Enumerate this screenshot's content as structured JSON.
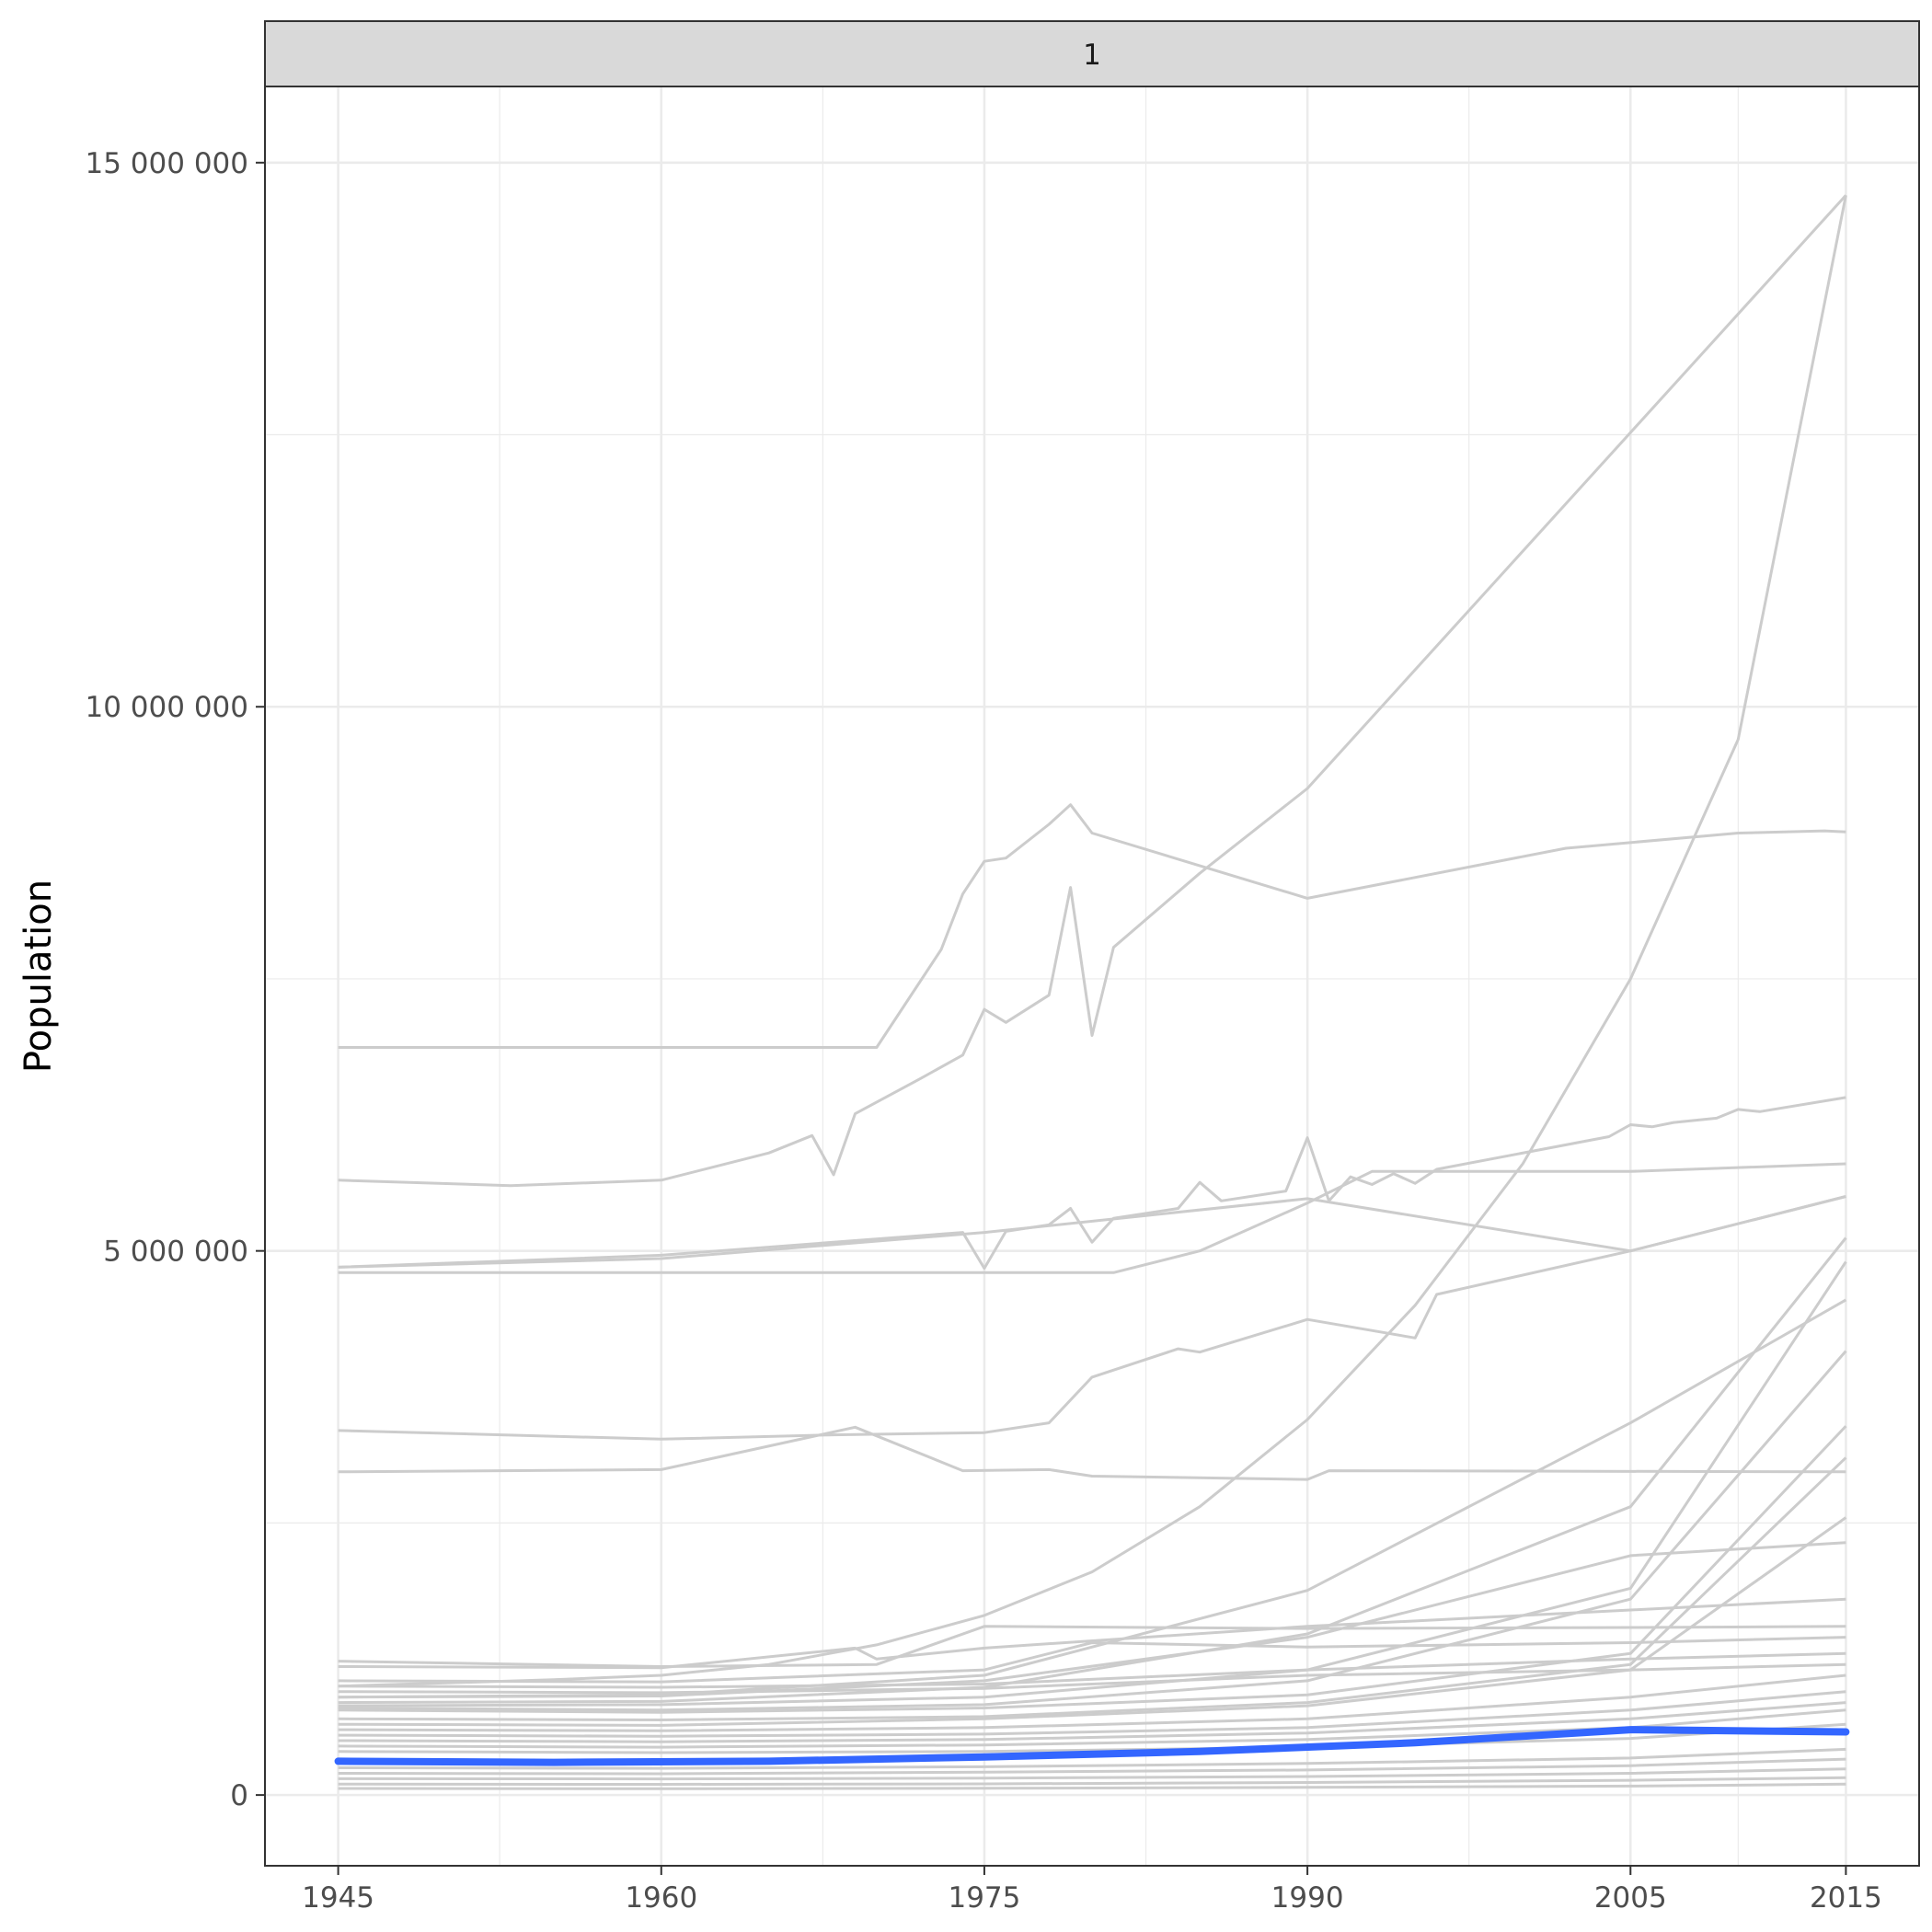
{
  "chart_data": {
    "type": "line",
    "facet_label": "1",
    "xlabel": "",
    "ylabel": "Population",
    "x_ticks": [
      1945,
      1960,
      1975,
      1990,
      2005,
      2015
    ],
    "x_tick_labels": [
      "1945",
      "1960",
      "1975",
      "1990",
      "2005",
      "2015"
    ],
    "y_ticks": [
      0,
      5000000,
      10000000,
      15000000
    ],
    "y_tick_labels": [
      "0",
      "5 000 000",
      "10 000 000",
      "15 000 000"
    ],
    "xlim": [
      1941.6,
      2018.4
    ],
    "ylim": [
      -650000,
      15700000
    ],
    "grid": true,
    "legend": "none",
    "colors": {
      "background_series": "#cccccc",
      "highlight_series": "#3366ff",
      "grid": "#ebebeb",
      "strip": "#d9d9d9"
    },
    "highlight": {
      "x": [
        1945,
        1955,
        1965,
        1975,
        1985,
        1995,
        2005,
        2015
      ],
      "y": [
        310000,
        300000,
        310000,
        350000,
        400000,
        480000,
        600000,
        580000
      ]
    },
    "background_series": [
      {
        "x": [
          1945,
          1950,
          1955,
          1960,
          1965,
          1970,
          1975,
          1980,
          1985,
          1990,
          1995,
          2000,
          2005,
          2010,
          2015
        ],
        "y": [
          1000000,
          1030000,
          1060000,
          1100000,
          1200000,
          1380000,
          1650000,
          2050000,
          2650000,
          3450000,
          4500000,
          5800000,
          7500000,
          9700000,
          14700000
        ]
      },
      {
        "x": [
          1945,
          1970,
          1973,
          1974,
          1975,
          1976,
          1978,
          1979,
          1980,
          1990,
          2002,
          2010,
          2014,
          2015
        ],
        "y": [
          6870000,
          6870000,
          7770000,
          8280000,
          8580000,
          8610000,
          8920000,
          9100000,
          8840000,
          8240000,
          8700000,
          8840000,
          8860000,
          8850000
        ]
      },
      {
        "x": [
          1945,
          1953,
          1960,
          1965,
          1967,
          1968,
          1969,
          1972,
          1974,
          1975,
          1976,
          1978,
          1979,
          1980,
          1981,
          1985,
          1990,
          2015
        ],
        "y": [
          5650000,
          5600000,
          5650000,
          5900000,
          6060000,
          5700000,
          6260000,
          6580000,
          6800000,
          7220000,
          7100000,
          7350000,
          8340000,
          6980000,
          7790000,
          8470000,
          9250000,
          14700000
        ]
      },
      {
        "x": [
          1945,
          1960,
          1974,
          1975,
          1976,
          1978,
          1979,
          1980,
          1981,
          1984,
          1985,
          1986,
          1989,
          1990,
          1991,
          1992,
          1993,
          1994,
          1995,
          1996,
          2004,
          2005,
          2006,
          2007,
          2009,
          2010,
          2011,
          2015
        ],
        "y": [
          4850000,
          4960000,
          5170000,
          4840000,
          5180000,
          5240000,
          5390000,
          5080000,
          5300000,
          5390000,
          5630000,
          5460000,
          5550000,
          6040000,
          5460000,
          5680000,
          5610000,
          5710000,
          5620000,
          5750000,
          6050000,
          6160000,
          6140000,
          6180000,
          6220000,
          6300000,
          6280000,
          6410000
        ]
      },
      {
        "x": [
          1945,
          1981,
          1985,
          1990,
          1993,
          2005,
          2015
        ],
        "y": [
          4800000,
          4800000,
          5000000,
          5440000,
          5730000,
          5730000,
          5800000
        ]
      },
      {
        "x": [
          1945,
          1960,
          1975,
          1990,
          2005,
          2015
        ],
        "y": [
          4850000,
          4930000,
          5170000,
          5480000,
          5000000,
          5500000
        ]
      },
      {
        "x": [
          1945,
          1960,
          1968,
          1975,
          1978,
          1980,
          1984,
          1985,
          1990,
          1995,
          1996,
          2005,
          2015
        ],
        "y": [
          3350000,
          3270000,
          3310000,
          3330000,
          3420000,
          3840000,
          4100000,
          4070000,
          4370000,
          4200000,
          4600000,
          5000000,
          5500000
        ]
      },
      {
        "x": [
          1945,
          1960,
          1969,
          1974,
          1978,
          1980,
          1990,
          1991,
          2015
        ],
        "y": [
          2970000,
          2990000,
          3380000,
          2980000,
          2990000,
          2930000,
          2900000,
          2980000,
          2970000
        ]
      },
      {
        "x": [
          1945,
          1960,
          1975,
          1990,
          2005,
          2015
        ],
        "y": [
          850000,
          860000,
          990000,
          1480000,
          2650000,
          5120000
        ]
      },
      {
        "x": [
          1945,
          1960,
          1975,
          1990,
          2005,
          2015
        ],
        "y": [
          820000,
          830000,
          900000,
          1150000,
          1900000,
          4900000
        ]
      },
      {
        "x": [
          1945,
          1960,
          1975,
          1990,
          2005,
          2015
        ],
        "y": [
          900000,
          920000,
          1100000,
          1880000,
          3420000,
          4550000
        ]
      },
      {
        "x": [
          1945,
          1960,
          1975,
          1990,
          2005,
          2015
        ],
        "y": [
          800000,
          780000,
          830000,
          1050000,
          1800000,
          4080000
        ]
      },
      {
        "x": [
          1945,
          1960,
          1975,
          1990,
          2005,
          2015
        ],
        "y": [
          780000,
          760000,
          800000,
          920000,
          1300000,
          3390000
        ]
      },
      {
        "x": [
          1945,
          1960,
          1975,
          1990,
          2005,
          2015
        ],
        "y": [
          700000,
          690000,
          720000,
          850000,
          1200000,
          3100000
        ]
      },
      {
        "x": [
          1945,
          1960,
          1975,
          1990,
          2005,
          2015
        ],
        "y": [
          650000,
          640000,
          700000,
          820000,
          1150000,
          2550000
        ]
      },
      {
        "x": [
          1945,
          1960,
          1975,
          1990,
          2005,
          2015
        ],
        "y": [
          900000,
          910000,
          1050000,
          1450000,
          2200000,
          2320000
        ]
      },
      {
        "x": [
          1945,
          1960,
          1970,
          1975,
          1990,
          2005,
          2015
        ],
        "y": [
          1230000,
          1180000,
          1200000,
          1550000,
          1530000,
          1540000,
          1550000
        ]
      },
      {
        "x": [
          1945,
          1960,
          1969,
          1970,
          1975,
          1990,
          2005,
          2015
        ],
        "y": [
          1180000,
          1170000,
          1350000,
          1250000,
          1350000,
          1550000,
          1700000,
          1800000
        ]
      },
      {
        "x": [
          1945,
          1960,
          1975,
          1980,
          1990,
          2005,
          2015
        ],
        "y": [
          1050000,
          1040000,
          1150000,
          1400000,
          1360000,
          1400000,
          1450000
        ]
      },
      {
        "x": [
          1945,
          1960,
          1975,
          1990,
          2005,
          2015
        ],
        "y": [
          1000000,
          990000,
          1020000,
          1150000,
          1250000,
          1300000
        ]
      },
      {
        "x": [
          1945,
          1960,
          1975,
          1990,
          2005,
          2015
        ],
        "y": [
          950000,
          940000,
          980000,
          1100000,
          1150000,
          1200000
        ]
      },
      {
        "x": [
          1945,
          1960,
          1975,
          1990,
          2005,
          2015
        ],
        "y": [
          600000,
          590000,
          620000,
          700000,
          900000,
          1100000
        ]
      },
      {
        "x": [
          1945,
          1960,
          1975,
          1990,
          2005,
          2015
        ],
        "y": [
          550000,
          540000,
          560000,
          620000,
          780000,
          950000
        ]
      },
      {
        "x": [
          1945,
          1960,
          1975,
          1990,
          2005,
          2015
        ],
        "y": [
          500000,
          490000,
          510000,
          570000,
          700000,
          850000
        ]
      },
      {
        "x": [
          1945,
          1960,
          1975,
          1990,
          2005,
          2015
        ],
        "y": [
          450000,
          440000,
          460000,
          510000,
          620000,
          780000
        ]
      },
      {
        "x": [
          1945,
          1960,
          1975,
          1990,
          2005,
          2015
        ],
        "y": [
          400000,
          390000,
          400000,
          440000,
          520000,
          650000
        ]
      },
      {
        "x": [
          1945,
          1960,
          1975,
          1990,
          2005,
          2015
        ],
        "y": [
          250000,
          245000,
          260000,
          290000,
          340000,
          420000
        ]
      },
      {
        "x": [
          1945,
          1960,
          1975,
          1990,
          2005,
          2015
        ],
        "y": [
          200000,
          195000,
          210000,
          230000,
          270000,
          330000
        ]
      },
      {
        "x": [
          1945,
          1960,
          1975,
          1990,
          2005,
          2015
        ],
        "y": [
          150000,
          148000,
          155000,
          170000,
          200000,
          240000
        ]
      },
      {
        "x": [
          1945,
          1960,
          1975,
          1990,
          2005,
          2015
        ],
        "y": [
          100000,
          98000,
          102000,
          115000,
          135000,
          160000
        ]
      },
      {
        "x": [
          1945,
          1960,
          1975,
          1990,
          2005,
          2015
        ],
        "y": [
          60000,
          58000,
          62000,
          70000,
          82000,
          100000
        ]
      }
    ]
  }
}
